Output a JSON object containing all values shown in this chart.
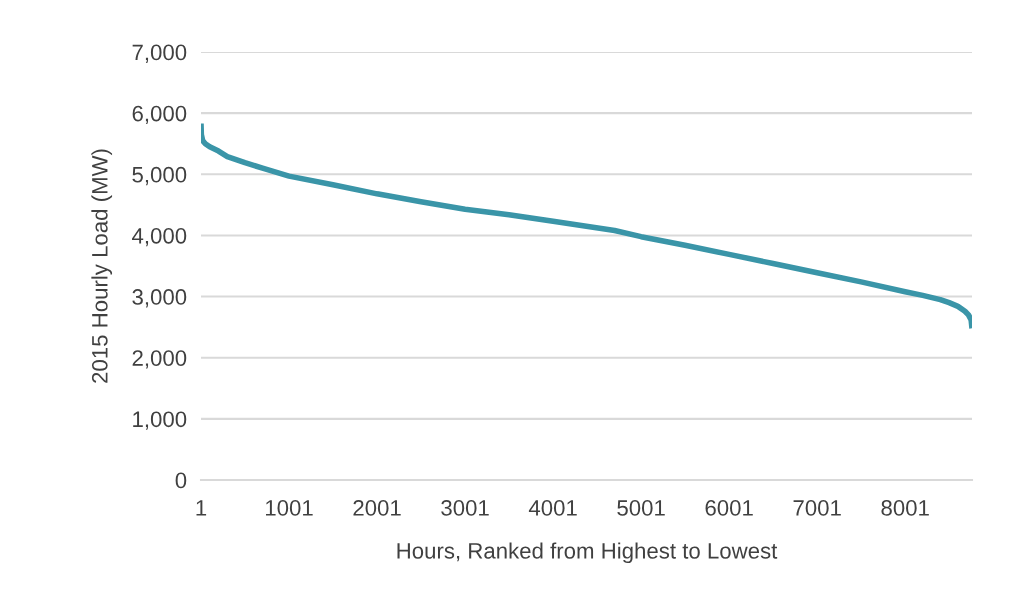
{
  "chart_data": {
    "type": "line",
    "xlabel": "Hours, Ranked from Highest to Lowest",
    "ylabel": "2015 Hourly Load (MW)",
    "x": [
      1,
      5,
      20,
      50,
      100,
      200,
      300,
      500,
      700,
      1001,
      1500,
      2001,
      2500,
      3001,
      3500,
      4001,
      4700,
      5001,
      5500,
      6001,
      6500,
      7001,
      7500,
      8001,
      8200,
      8400,
      8500,
      8600,
      8680,
      8720,
      8750,
      8760
    ],
    "series": [
      {
        "color": "#3a95a8",
        "values": [
          5830,
          5650,
          5550,
          5500,
          5450,
          5380,
          5290,
          5190,
          5100,
          4970,
          4830,
          4680,
          4550,
          4430,
          4340,
          4230,
          4080,
          3980,
          3840,
          3690,
          3540,
          3390,
          3240,
          3080,
          3020,
          2950,
          2900,
          2840,
          2760,
          2700,
          2620,
          2480
        ]
      }
    ],
    "xlim": [
      1,
      8760
    ],
    "xticks": [
      1,
      1001,
      2001,
      3001,
      4001,
      5001,
      6001,
      7001,
      8001
    ],
    "ylim": [
      0,
      7000
    ],
    "yticks": [
      0,
      {
        "value": 1000,
        "label": "1,000"
      },
      {
        "value": 2000,
        "label": "2,000"
      },
      {
        "value": 3000,
        "label": "3,000"
      },
      {
        "value": 4000,
        "label": "4,000"
      },
      {
        "value": 5000,
        "label": "5,000"
      },
      {
        "value": 6000,
        "label": "6,000"
      },
      {
        "value": 7000,
        "label": "7,000"
      }
    ],
    "grid": "y",
    "marker": "none",
    "line_style": "solid",
    "legend": false
  }
}
